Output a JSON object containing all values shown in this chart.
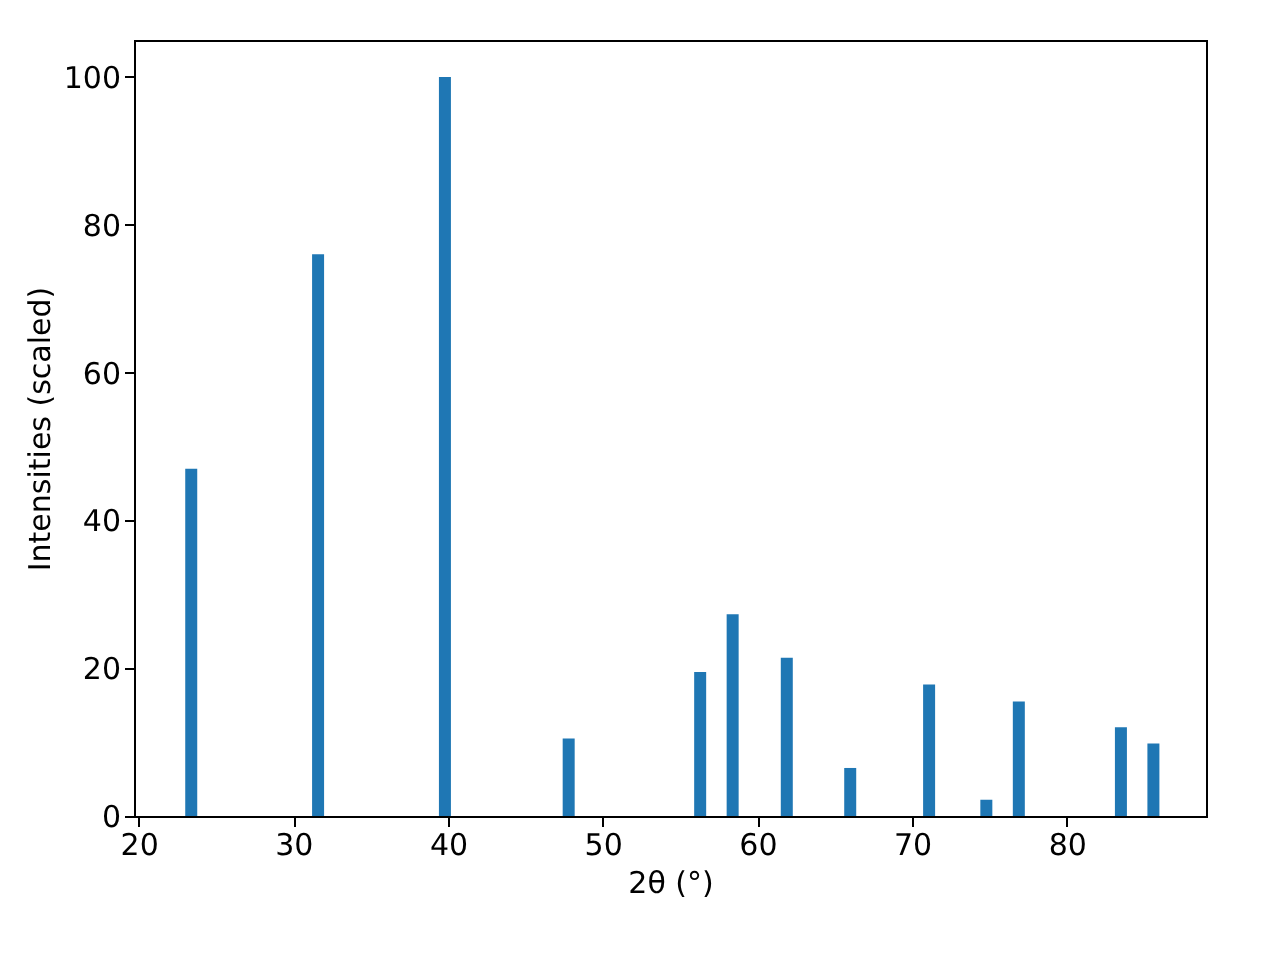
{
  "chart_data": {
    "type": "bar",
    "xlabel": "2θ (°)",
    "ylabel": "Intensities (scaled)",
    "x": [
      23.4,
      31.6,
      39.8,
      47.8,
      56.3,
      58.4,
      61.9,
      66.0,
      71.1,
      74.8,
      76.9,
      83.5,
      85.6
    ],
    "series": [
      {
        "color": "#1f77b4",
        "values": [
          47,
          76,
          100,
          10.5,
          19.5,
          27.3,
          21.4,
          6.5,
          17.8,
          2.2,
          15.5,
          12,
          9.8
        ]
      }
    ],
    "xlim": [
      19.7,
      89.0
    ],
    "ylim": [
      0,
      105
    ],
    "xticks": [
      20,
      30,
      40,
      50,
      60,
      70,
      80
    ],
    "yticks": [
      0,
      20,
      40,
      60,
      80,
      100
    ],
    "grid": false,
    "legend": false
  }
}
